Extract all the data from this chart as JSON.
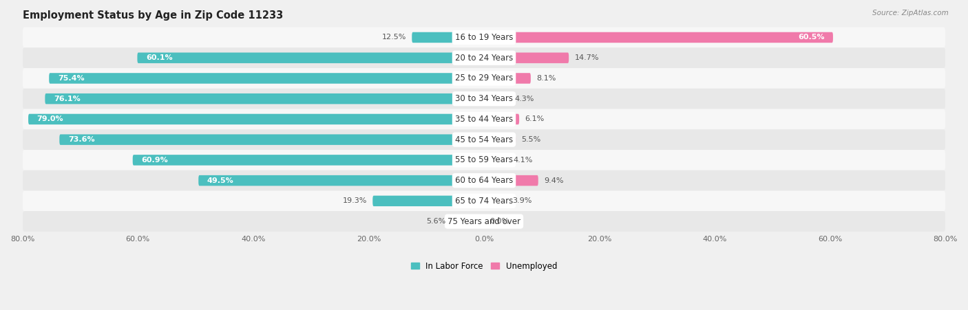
{
  "title": "Employment Status by Age in Zip Code 11233",
  "source": "Source: ZipAtlas.com",
  "categories": [
    "16 to 19 Years",
    "20 to 24 Years",
    "25 to 29 Years",
    "30 to 34 Years",
    "35 to 44 Years",
    "45 to 54 Years",
    "55 to 59 Years",
    "60 to 64 Years",
    "65 to 74 Years",
    "75 Years and over"
  ],
  "labor_force": [
    12.5,
    60.1,
    75.4,
    76.1,
    79.0,
    73.6,
    60.9,
    49.5,
    19.3,
    5.6
  ],
  "unemployed": [
    60.5,
    14.7,
    8.1,
    4.3,
    6.1,
    5.5,
    4.1,
    9.4,
    3.9,
    0.0
  ],
  "labor_force_color": "#4BBFBF",
  "unemployed_color": "#F07AAA",
  "axis_limit": 80.0,
  "bar_height": 0.52,
  "background_color": "#f0f0f0",
  "row_bg_light": "#f7f7f7",
  "row_bg_dark": "#e8e8e8",
  "title_fontsize": 10.5,
  "label_fontsize": 8.5,
  "value_fontsize": 8.0,
  "tick_fontsize": 8,
  "source_fontsize": 7.5
}
